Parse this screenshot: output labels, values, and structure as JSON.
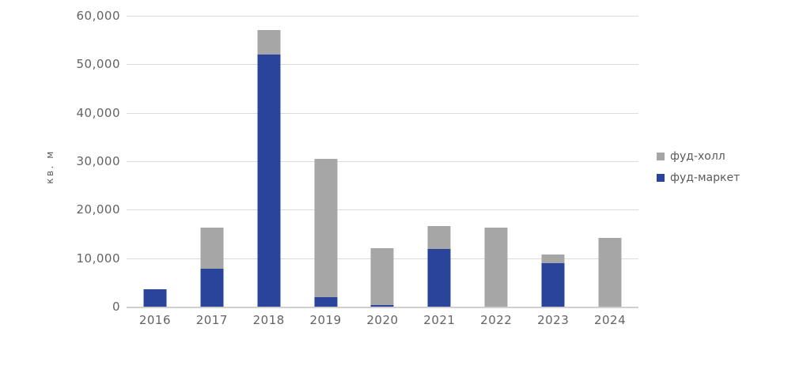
{
  "chart_data": {
    "type": "bar",
    "stacked": true,
    "categories": [
      "2016",
      "2017",
      "2018",
      "2019",
      "2020",
      "2021",
      "2022",
      "2023",
      "2024"
    ],
    "series": [
      {
        "name": "фуд-маркет",
        "color": "#2a449c",
        "values": [
          3600,
          7900,
          52000,
          2000,
          300,
          11900,
          0,
          9000,
          0
        ]
      },
      {
        "name": "фуд-холл",
        "color": "#a6a6a6",
        "values": [
          0,
          8400,
          5000,
          28500,
          11800,
          4700,
          16300,
          1800,
          14200
        ]
      }
    ],
    "totals": [
      3600,
      16300,
      57000,
      30500,
      12100,
      16600,
      16300,
      10800,
      14200
    ],
    "xlabel": "",
    "ylabel": "кв. м",
    "ylim": [
      0,
      60000
    ],
    "ytick_step": 10000,
    "yticks": [
      {
        "value": 0,
        "label": "0"
      },
      {
        "value": 10000,
        "label": "10,000"
      },
      {
        "value": 20000,
        "label": "20,000"
      },
      {
        "value": 30000,
        "label": "30,000"
      },
      {
        "value": 40000,
        "label": "40,000"
      },
      {
        "value": 50000,
        "label": "50,000"
      },
      {
        "value": 60000,
        "label": "60,000"
      }
    ],
    "grid": true,
    "legend_position": "right",
    "legend": [
      {
        "label": "фуд-холл",
        "color": "#a6a6a6"
      },
      {
        "label": "фуд-маркет",
        "color": "#2a449c"
      }
    ]
  },
  "colors": {
    "food_market_blue": "#2a449c",
    "food_hall_gray": "#a6a6a6",
    "gridline": "#dcdcdc",
    "axis_line": "#cfcfcf",
    "tick_text": "#636363"
  }
}
